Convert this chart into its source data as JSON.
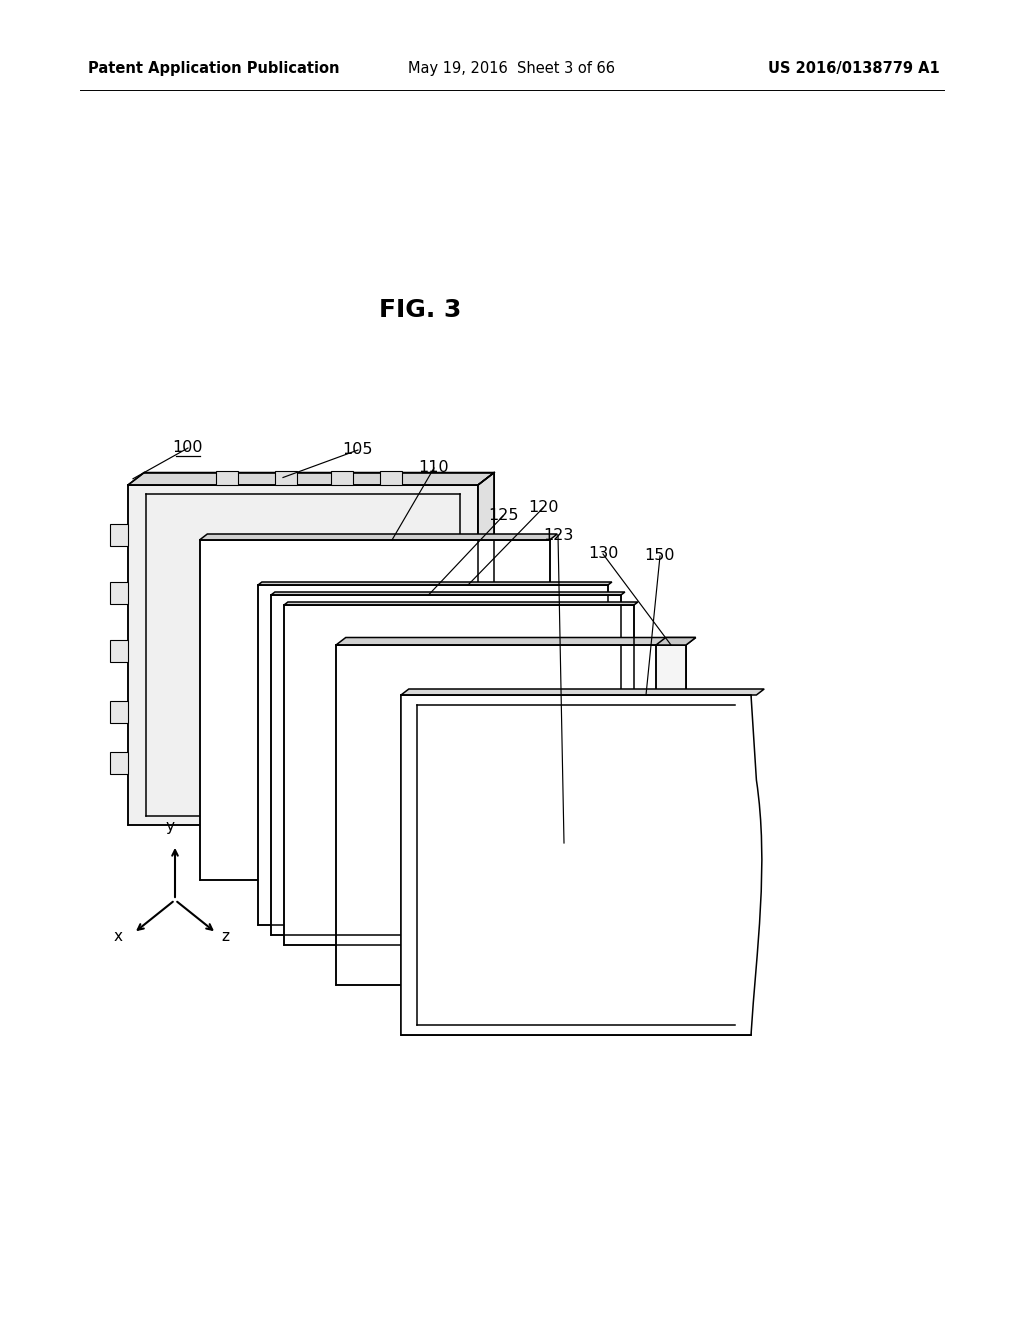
{
  "background_color": "#ffffff",
  "title_text": "FIG. 3",
  "title_fontsize": 18,
  "title_fontweight": "bold",
  "header_left": "Patent Application Publication",
  "header_center": "May 19, 2016  Sheet 3 of 66",
  "header_right": "US 2016/0138779 A1",
  "header_fontsize": 10.5,
  "line_color": "#000000",
  "line_width": 1.1,
  "label_fontsize": 11.5
}
